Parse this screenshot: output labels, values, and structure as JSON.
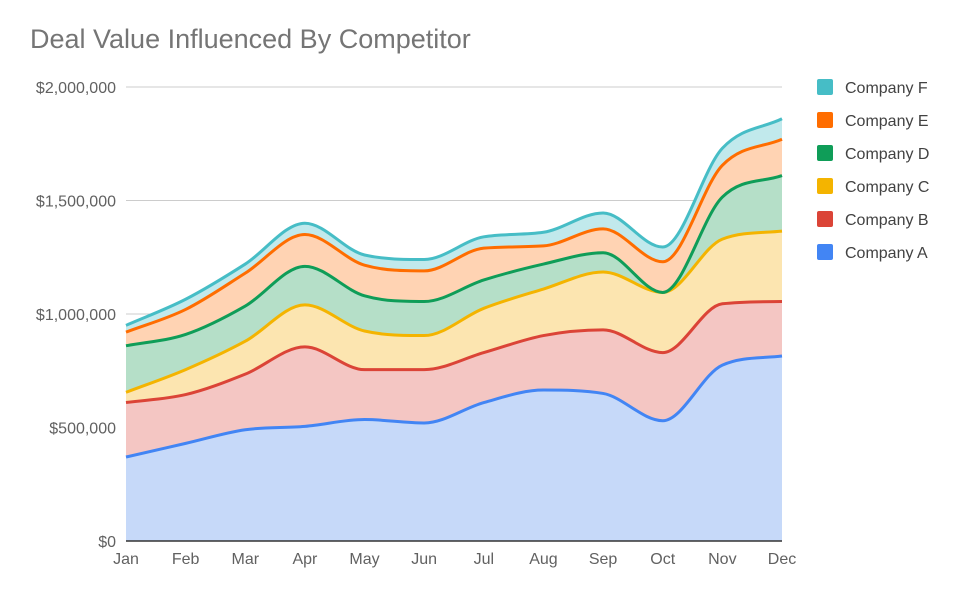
{
  "chart_data": {
    "type": "area",
    "stacked": true,
    "title": "Deal Value Influenced By Competitor",
    "xlabel": "",
    "ylabel": "",
    "categories": [
      "Jan",
      "Feb",
      "Mar",
      "Apr",
      "May",
      "Jun",
      "Jul",
      "Aug",
      "Sep",
      "Oct",
      "Nov",
      "Dec"
    ],
    "ylim": [
      0,
      2000000
    ],
    "yticks": [
      0,
      500000,
      1000000,
      1500000,
      2000000
    ],
    "ytick_labels": [
      "$0",
      "$500,000",
      "$1,000,000",
      "$1,500,000",
      "$2,000,000"
    ],
    "grid": true,
    "legend_position": "right",
    "series": [
      {
        "name": "Company A",
        "color": "#4285f4",
        "fill": "#c6d9f9",
        "values": [
          370000,
          430000,
          490000,
          505000,
          535000,
          520000,
          610000,
          665000,
          650000,
          530000,
          775000,
          815000
        ]
      },
      {
        "name": "Company B",
        "color": "#db4437",
        "fill": "#f4c6c3",
        "values": [
          240000,
          215000,
          245000,
          350000,
          220000,
          235000,
          220000,
          240000,
          280000,
          300000,
          270000,
          240000
        ]
      },
      {
        "name": "Company C",
        "color": "#f4b400",
        "fill": "#fce5b0",
        "values": [
          45000,
          110000,
          145000,
          185000,
          170000,
          150000,
          195000,
          205000,
          255000,
          265000,
          285000,
          310000
        ]
      },
      {
        "name": "Company D",
        "color": "#0f9d58",
        "fill": "#b5dfc8",
        "values": [
          205000,
          155000,
          155000,
          170000,
          155000,
          150000,
          125000,
          110000,
          85000,
          0,
          185000,
          245000
        ]
      },
      {
        "name": "Company E",
        "color": "#ff6d00",
        "fill": "#ffd3b3",
        "values": [
          60000,
          110000,
          145000,
          140000,
          135000,
          135000,
          140000,
          80000,
          105000,
          135000,
          140000,
          160000
        ]
      },
      {
        "name": "Company F",
        "color": "#46bdc6",
        "fill": "#c1e9ec",
        "values": [
          30000,
          45000,
          40000,
          50000,
          45000,
          50000,
          50000,
          60000,
          70000,
          65000,
          75000,
          90000
        ]
      }
    ]
  }
}
